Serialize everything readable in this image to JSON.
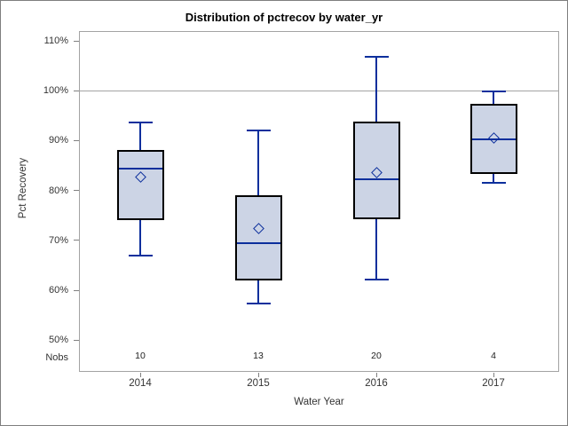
{
  "chart": {
    "title": "Distribution of pctrecov by water_yr",
    "ylabel": "Pct Recovery",
    "xlabel": "Water Year",
    "nobs_label": "Nobs"
  },
  "chart_data": {
    "type": "boxplot",
    "title": "Distribution of pctrecov by water_yr",
    "xlabel": "Water Year",
    "ylabel": "Pct Recovery",
    "categories": [
      "2014",
      "2015",
      "2016",
      "2017"
    ],
    "yticks": [
      {
        "value": 110,
        "label": "110%"
      },
      {
        "value": 100,
        "label": "100%"
      },
      {
        "value": 90,
        "label": "90%"
      },
      {
        "value": 80,
        "label": "80%"
      },
      {
        "value": 70,
        "label": "70%"
      },
      {
        "value": 60,
        "label": "60%"
      },
      {
        "value": 50,
        "label": "50%"
      }
    ],
    "ylim": [
      50,
      110
    ],
    "reference_line": 100,
    "grid": false,
    "legend": "none",
    "nobs_label": "Nobs",
    "series": [
      {
        "category": "2014",
        "nobs": 10,
        "low": 67.0,
        "q1": 74.0,
        "median": 84.4,
        "q3": 88.1,
        "high": 93.7,
        "mean": 82.7
      },
      {
        "category": "2015",
        "nobs": 13,
        "low": 57.3,
        "q1": 61.9,
        "median": 69.4,
        "q3": 79.1,
        "high": 92.0,
        "mean": 72.4
      },
      {
        "category": "2016",
        "nobs": 20,
        "low": 62.2,
        "q1": 74.2,
        "median": 82.3,
        "q3": 93.8,
        "high": 106.8,
        "mean": 83.5
      },
      {
        "category": "2017",
        "nobs": 4,
        "low": 81.5,
        "q1": 83.3,
        "median": 90.2,
        "q3": 97.4,
        "high": 99.8,
        "mean": 90.6
      }
    ]
  },
  "colors": {
    "box_fill": "#ccd4e5",
    "box_border": "#000000",
    "line": "#0c2f9c",
    "frame": "#a3a3a3",
    "tick": "#808080",
    "text": "#333333",
    "nobs_text": "#222222"
  }
}
